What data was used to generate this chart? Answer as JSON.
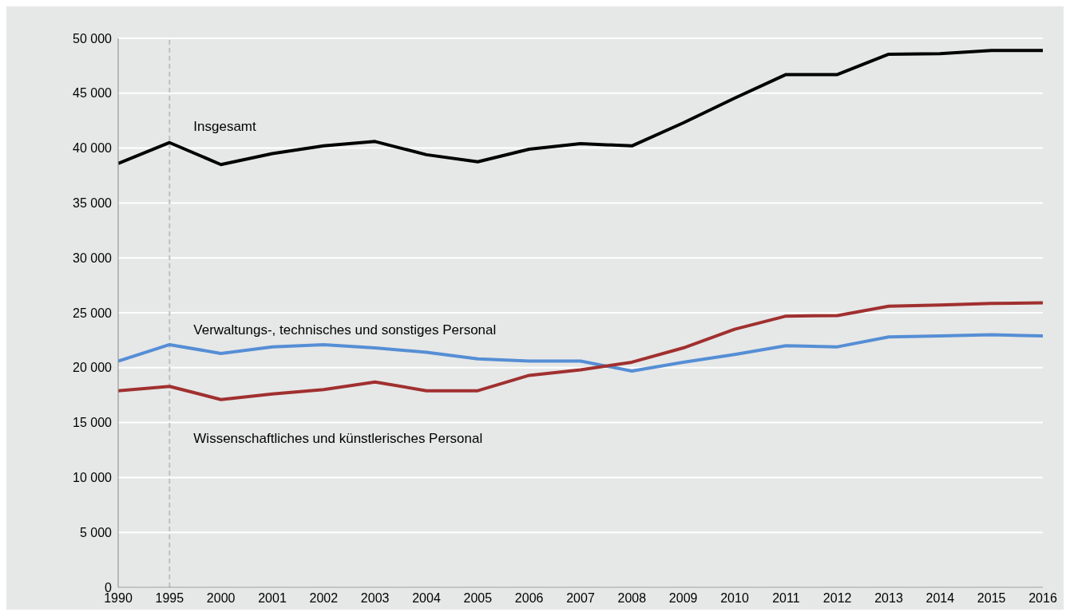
{
  "chart_data": {
    "type": "line",
    "categories": [
      "1990",
      "1995",
      "2000",
      "2001",
      "2002",
      "2003",
      "2004",
      "2005",
      "2006",
      "2007",
      "2008",
      "2009",
      "2010",
      "2011",
      "2012",
      "2013",
      "2014",
      "2015",
      "2016"
    ],
    "series": [
      {
        "color": "#000000",
        "values": [
          38600,
          40500,
          38500,
          39500,
          40200,
          40600,
          39400,
          38750,
          39900,
          40400,
          40200,
          42300,
          44550,
          46700,
          46700,
          48550,
          48600,
          48900,
          48900
        ]
      },
      {
        "color": "#558ed5",
        "values": [
          20600,
          22100,
          21300,
          21900,
          22100,
          21800,
          21400,
          20800,
          20600,
          20600,
          19700,
          20500,
          21200,
          22000,
          21900,
          22800,
          22900,
          23000,
          22900
        ]
      },
      {
        "color": "#a0302f",
        "values": [
          17900,
          18300,
          17100,
          17600,
          18000,
          18700,
          17900,
          17900,
          19300,
          19800,
          20500,
          21800,
          23500,
          24700,
          24750,
          25600,
          25700,
          25850,
          25900
        ]
      }
    ],
    "annotations": [
      {
        "text": "Insgesamt",
        "x": "1995",
        "y": 42000
      },
      {
        "text": "Verwaltungs-, technisches und sonstiges Personal",
        "x": "1995",
        "y": 23500
      },
      {
        "text": "Wissenschaftliches und künstlerisches Personal",
        "x": "1995",
        "y": 13600
      }
    ],
    "ref_lines": [
      {
        "axis": "x",
        "value": "1995",
        "color": "#bfbfbf",
        "line_style": "dashed"
      }
    ],
    "ylim": [
      0,
      50000
    ],
    "yticks": [
      {
        "value": 0,
        "label": "0"
      },
      {
        "value": 5000,
        "label": "5 000"
      },
      {
        "value": 10000,
        "label": "10 000"
      },
      {
        "value": 15000,
        "label": "15 000"
      },
      {
        "value": 20000,
        "label": "20 000"
      },
      {
        "value": 25000,
        "label": "25 000"
      },
      {
        "value": 30000,
        "label": "30 000"
      },
      {
        "value": 35000,
        "label": "35 000"
      },
      {
        "value": 40000,
        "label": "40 000"
      },
      {
        "value": 45000,
        "label": "45 000"
      },
      {
        "value": 50000,
        "label": "50 000"
      }
    ],
    "grid": "y",
    "marker": "none",
    "line_style": "solid"
  }
}
